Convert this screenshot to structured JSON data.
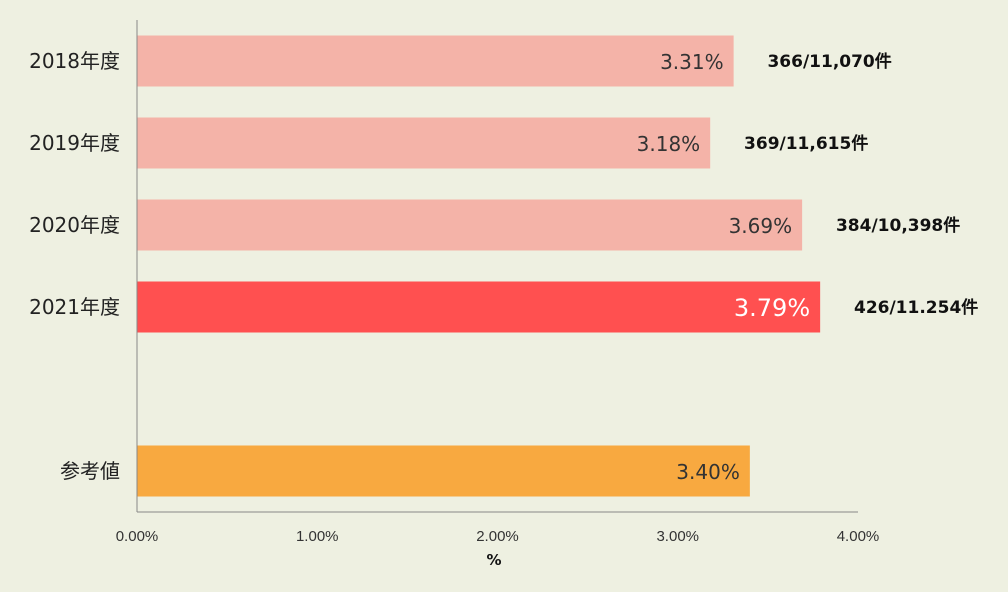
{
  "chart_data": {
    "type": "bar",
    "orientation": "horizontal",
    "categories": [
      "2018年度",
      "2019年度",
      "2020年度",
      "2021年度",
      "参考値"
    ],
    "values": [
      3.31,
      3.18,
      3.69,
      3.79,
      3.4
    ],
    "value_labels": [
      "3.31%",
      "3.18%",
      "3.69%",
      "3.79%",
      "3.40%"
    ],
    "count_labels": [
      "366/11,070件",
      "369/11,615件",
      "384/10,398件",
      "426/11.254件",
      ""
    ],
    "colors": [
      "#f4b3a8",
      "#f4b3a8",
      "#f4b3a8",
      "#ff5050",
      "#f8a940"
    ],
    "highlight_index": 3,
    "xlabel": "%",
    "xlim": [
      0,
      4
    ],
    "xticks": [
      "0.00%",
      "1.00%",
      "2.00%",
      "3.00%",
      "4.00%"
    ],
    "grid": false,
    "legend": "none"
  }
}
